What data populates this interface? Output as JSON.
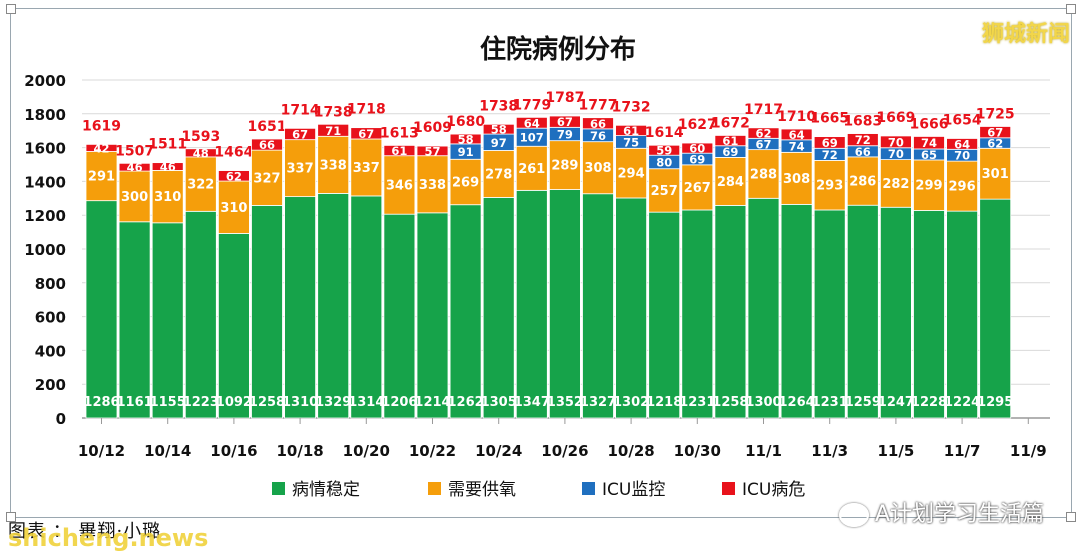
{
  "watermark_top": "狮城新闻",
  "caption": "图表 ： 畢翔·小璐",
  "site_mark": "shicheng.news",
  "wechat_mark": "A计划学习生活篇",
  "colors": {
    "stable": "#16a34a",
    "oxygen": "#f59e0b",
    "icu_monitor": "#1f6fbf",
    "icu_critical": "#e8121b",
    "total_label": "#e8121b",
    "bar_text": "#ffffff"
  },
  "chart_data": {
    "type": "bar",
    "stacked": true,
    "title": "住院病例分布",
    "ylim": [
      0,
      2000
    ],
    "yticks": [
      "0",
      "200",
      "400",
      "600",
      "800",
      "1000",
      "1200",
      "1400",
      "1600",
      "1800",
      "2000"
    ],
    "grid": true,
    "legend_position": "bottom",
    "xtick_labels": [
      "10/12",
      "10/14",
      "10/16",
      "10/18",
      "10/20",
      "10/22",
      "10/24",
      "10/26",
      "10/28",
      "10/30",
      "11/1",
      "11/3",
      "11/5",
      "11/7",
      "11/9"
    ],
    "categories": [
      "10/12",
      "10/13",
      "10/14",
      "10/15",
      "10/16",
      "10/17",
      "10/18",
      "10/19",
      "10/20",
      "10/21",
      "10/22",
      "10/23",
      "10/24",
      "10/25",
      "10/26",
      "10/27",
      "10/28",
      "10/29",
      "10/30",
      "10/31",
      "11/1",
      "11/2",
      "11/3",
      "11/4",
      "11/5",
      "11/6",
      "11/7",
      "11/8"
    ],
    "totals": [
      1619,
      1507,
      1511,
      1593,
      1464,
      1651,
      1714,
      1738,
      1718,
      1613,
      1609,
      1680,
      1738,
      1779,
      1787,
      1777,
      1732,
      1614,
      1627,
      1672,
      1717,
      1710,
      1665,
      1683,
      1669,
      1666,
      1654,
      1725
    ],
    "series": [
      {
        "name": "病情稳定",
        "color_key": "stable",
        "values": [
          1286,
          1161,
          1155,
          1223,
          1092,
          1258,
          1310,
          1329,
          1314,
          1206,
          1214,
          1262,
          1305,
          1347,
          1352,
          1327,
          1302,
          1218,
          1231,
          1258,
          1300,
          1264,
          1231,
          1259,
          1247,
          1228,
          1224,
          1295
        ]
      },
      {
        "name": "需要供氧",
        "color_key": "oxygen",
        "values": [
          291,
          300,
          310,
          322,
          310,
          327,
          337,
          338,
          337,
          346,
          338,
          269,
          278,
          261,
          289,
          308,
          294,
          257,
          267,
          284,
          288,
          308,
          293,
          286,
          282,
          299,
          296,
          301
        ]
      },
      {
        "name": "ICU监控",
        "color_key": "icu_monitor",
        "values": [
          null,
          null,
          null,
          null,
          null,
          null,
          null,
          null,
          null,
          null,
          null,
          91,
          97,
          107,
          79,
          76,
          75,
          80,
          69,
          69,
          67,
          74,
          72,
          66,
          70,
          65,
          70,
          62
        ]
      },
      {
        "name": "ICU病危",
        "color_key": "icu_critical",
        "values": [
          42,
          46,
          46,
          48,
          62,
          66,
          67,
          71,
          67,
          61,
          57,
          58,
          58,
          64,
          67,
          66,
          61,
          59,
          60,
          61,
          62,
          64,
          69,
          72,
          70,
          74,
          64,
          67
        ]
      }
    ]
  }
}
